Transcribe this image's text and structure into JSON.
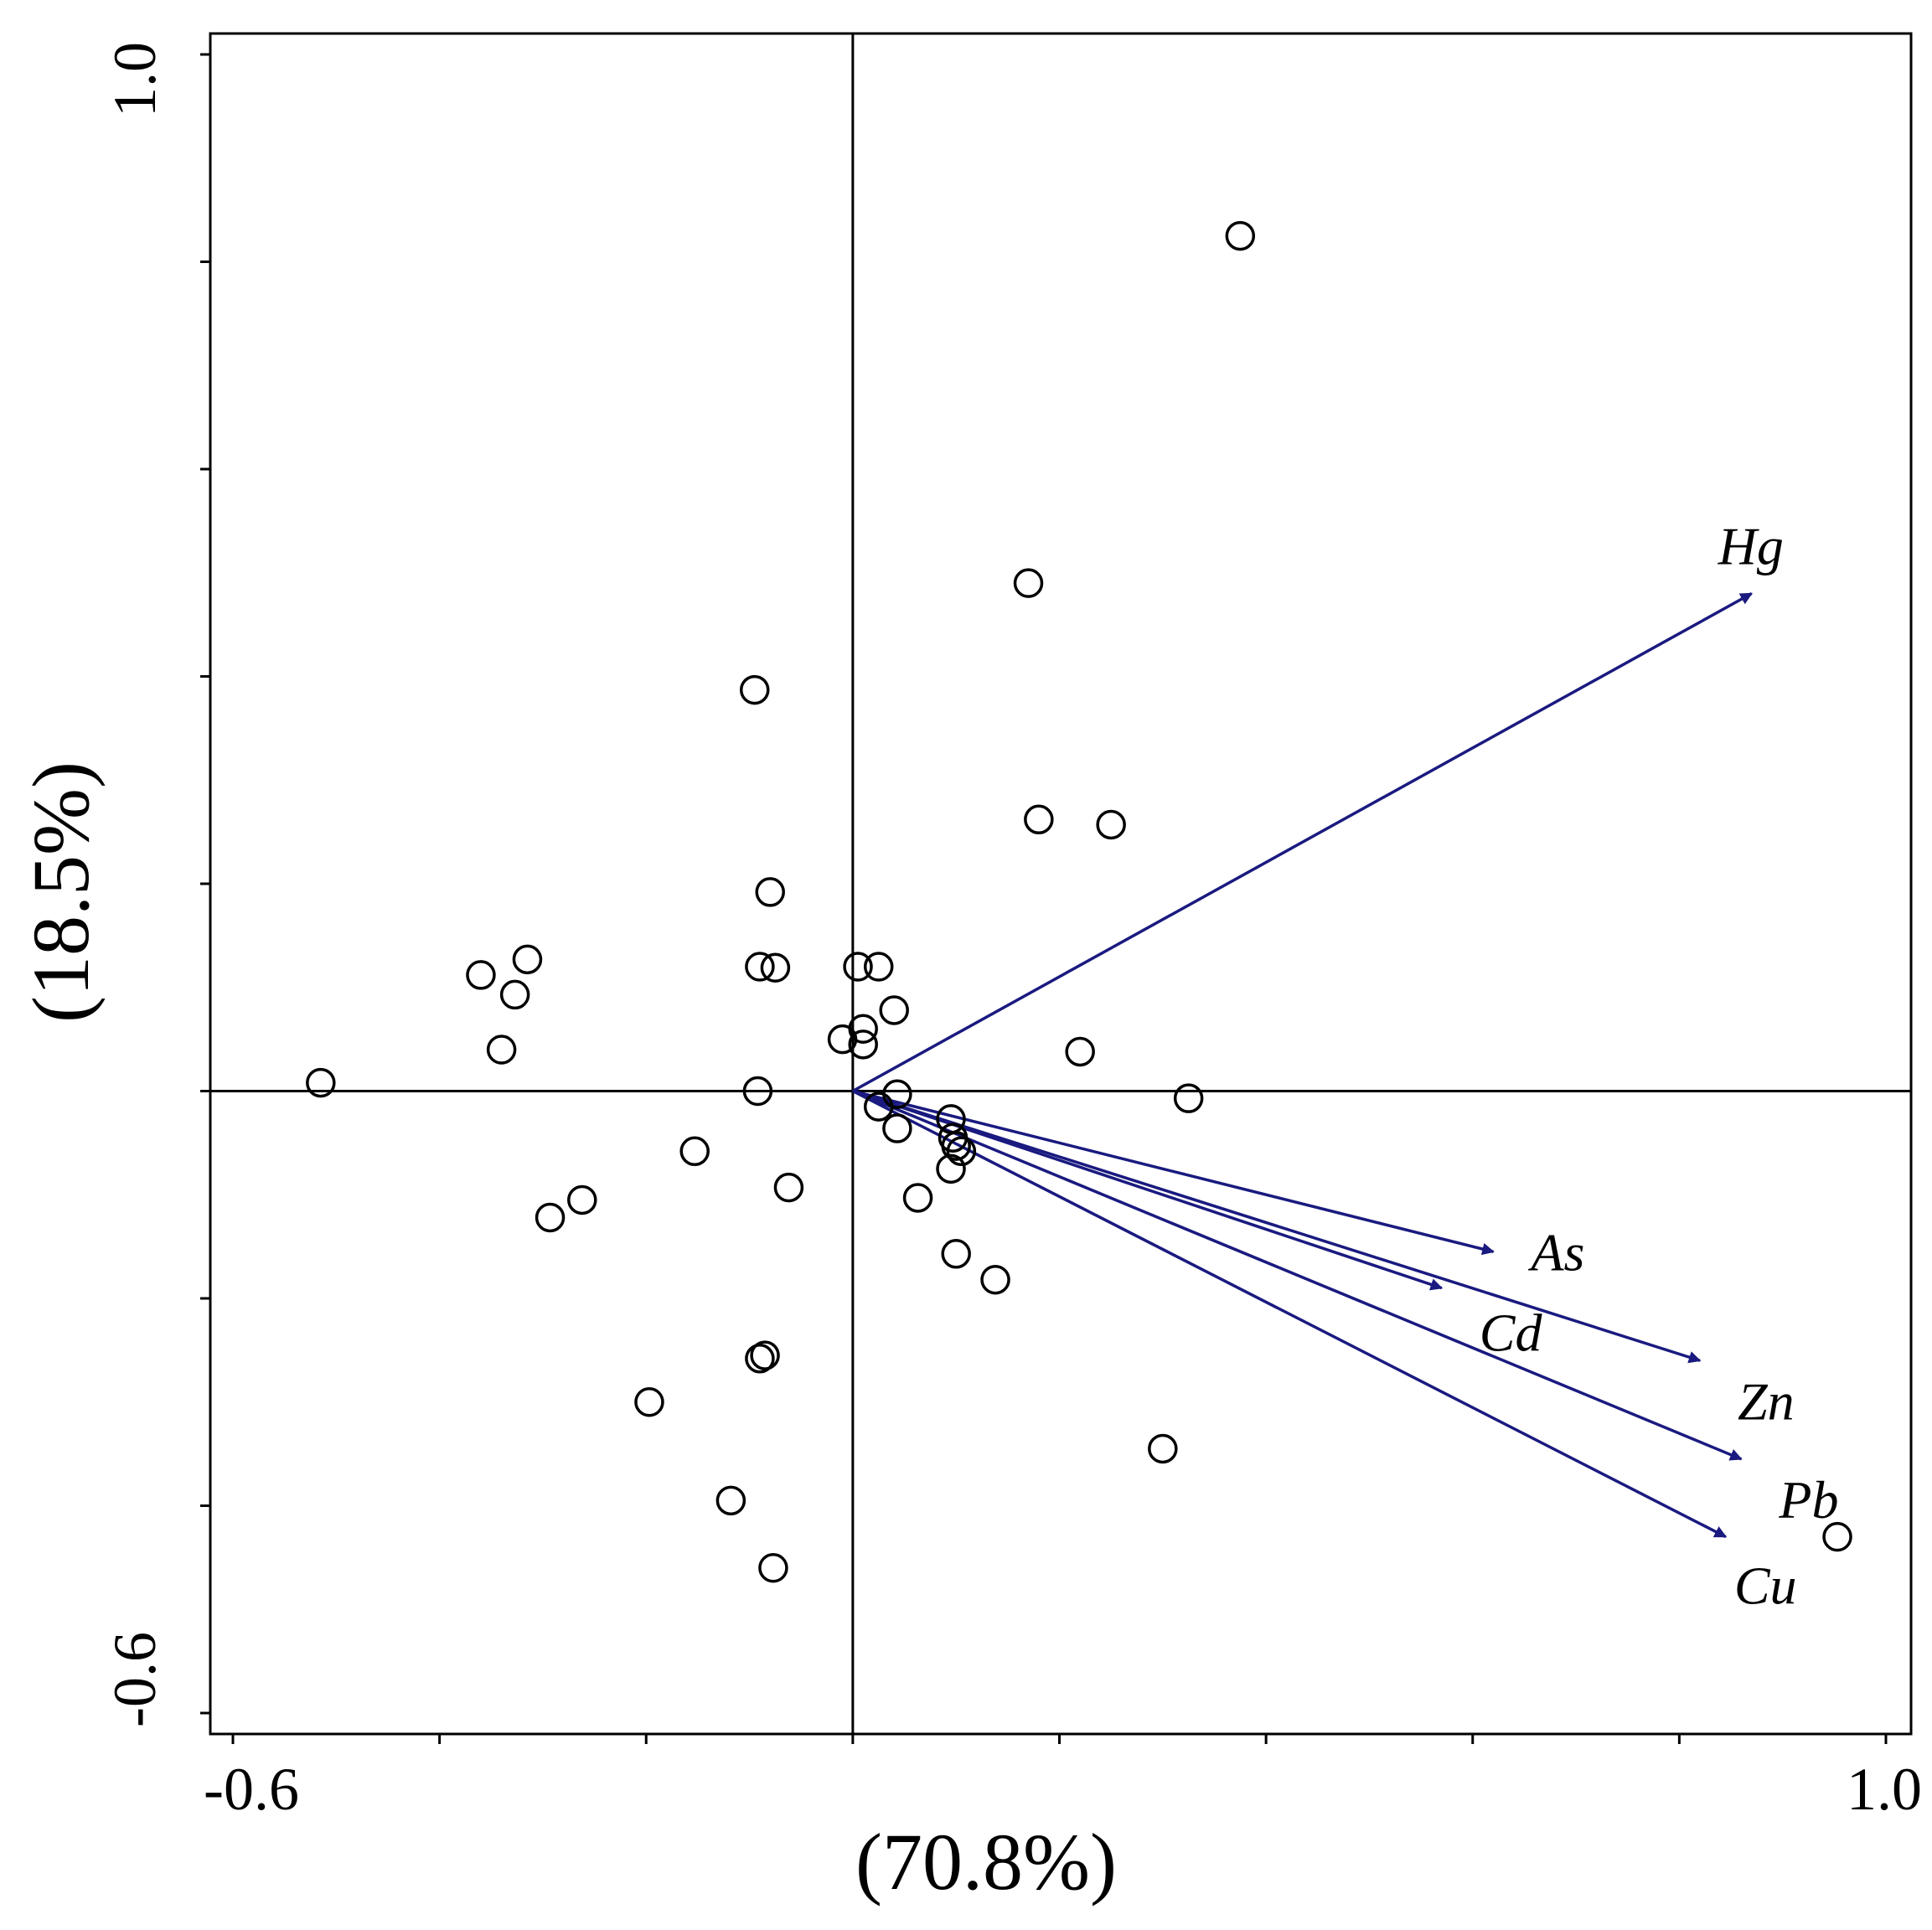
{
  "chart_data": {
    "type": "scatter",
    "subtype": "pca-biplot",
    "title": "",
    "xlabel": "(70.8%)",
    "ylabel": "(18.5%)",
    "xlim": [
      -0.6,
      1.0
    ],
    "ylim": [
      -0.6,
      1.0
    ],
    "x_tick_labels": [
      "-0.6",
      "1.0"
    ],
    "y_tick_labels": [
      "1.0",
      "-0.6"
    ],
    "colors": {
      "vector": "#1a1a80",
      "frame": "#000000",
      "points": "#000000"
    },
    "vectors": [
      {
        "name": "Hg",
        "x": 0.87,
        "y": 0.48
      },
      {
        "name": "As",
        "x": 0.62,
        "y": -0.155
      },
      {
        "name": "Cd",
        "x": 0.57,
        "y": -0.19
      },
      {
        "name": "Zn",
        "x": 0.82,
        "y": -0.26
      },
      {
        "name": "Pb",
        "x": 0.86,
        "y": -0.355
      },
      {
        "name": "Cu",
        "x": 0.845,
        "y": -0.43
      }
    ],
    "points": [
      {
        "x": 0.375,
        "y": 0.825
      },
      {
        "x": 0.17,
        "y": 0.49
      },
      {
        "x": -0.095,
        "y": 0.387
      },
      {
        "x": 0.18,
        "y": 0.262
      },
      {
        "x": 0.25,
        "y": 0.257
      },
      {
        "x": -0.08,
        "y": 0.192
      },
      {
        "x": -0.315,
        "y": 0.127
      },
      {
        "x": -0.36,
        "y": 0.112
      },
      {
        "x": -0.327,
        "y": 0.093
      },
      {
        "x": -0.09,
        "y": 0.12
      },
      {
        "x": -0.075,
        "y": 0.119
      },
      {
        "x": 0.005,
        "y": 0.12
      },
      {
        "x": 0.025,
        "y": 0.12
      },
      {
        "x": 0.04,
        "y": 0.078
      },
      {
        "x": 0.01,
        "y": 0.06
      },
      {
        "x": -0.01,
        "y": 0.05
      },
      {
        "x": 0.01,
        "y": 0.045
      },
      {
        "x": -0.34,
        "y": 0.04
      },
      {
        "x": 0.22,
        "y": 0.038
      },
      {
        "x": -0.515,
        "y": 0.008
      },
      {
        "x": -0.092,
        "y": 0.0
      },
      {
        "x": 0.043,
        "y": -0.003
      },
      {
        "x": 0.325,
        "y": -0.007
      },
      {
        "x": 0.025,
        "y": -0.015
      },
      {
        "x": 0.095,
        "y": -0.027
      },
      {
        "x": 0.043,
        "y": -0.036
      },
      {
        "x": 0.097,
        "y": -0.045
      },
      {
        "x": 0.1,
        "y": -0.053
      },
      {
        "x": -0.153,
        "y": -0.058
      },
      {
        "x": 0.105,
        "y": -0.058
      },
      {
        "x": 0.095,
        "y": -0.075
      },
      {
        "x": -0.062,
        "y": -0.093
      },
      {
        "x": 0.063,
        "y": -0.103
      },
      {
        "x": -0.262,
        "y": -0.105
      },
      {
        "x": -0.293,
        "y": -0.122
      },
      {
        "x": 0.1,
        "y": -0.157
      },
      {
        "x": 0.138,
        "y": -0.182
      },
      {
        "x": -0.085,
        "y": -0.255
      },
      {
        "x": -0.09,
        "y": -0.258
      },
      {
        "x": -0.197,
        "y": -0.3
      },
      {
        "x": 0.3,
        "y": -0.345
      },
      {
        "x": -0.118,
        "y": -0.395
      },
      {
        "x": -0.077,
        "y": -0.46
      },
      {
        "x": 0.953,
        "y": -0.43
      }
    ]
  }
}
